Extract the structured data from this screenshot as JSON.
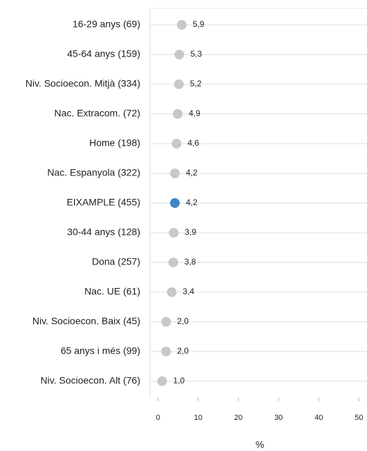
{
  "chart_data": {
    "type": "dot",
    "categories": [
      "16-29 anys (69)",
      "45-64 anys (159)",
      "Niv. Socioecon. Mitjà (334)",
      "Nac. Extracom. (72)",
      "Home (198)",
      "Nac. Espanyola (322)",
      "EIXAMPLE (455)",
      "30-44 anys (128)",
      "Dona (257)",
      "Nac. UE (61)",
      "Niv. Socioecon. Baix (45)",
      "65 anys i més (99)",
      "Niv. Socioecon. Alt (76)"
    ],
    "values": [
      5.9,
      5.3,
      5.2,
      4.9,
      4.6,
      4.2,
      4.2,
      3.9,
      3.8,
      3.4,
      2.0,
      2.0,
      1.0
    ],
    "value_labels": [
      "5,9",
      "5,3",
      "5,2",
      "4,9",
      "4,6",
      "4,2",
      "4,2",
      "3,9",
      "3,8",
      "3,4",
      "2,0",
      "2,0",
      "1,0"
    ],
    "color": "#c8c8c8",
    "colors": [
      "#c8c8c8",
      "#c8c8c8",
      "#c8c8c8",
      "#c8c8c8",
      "#c8c8c8",
      "#c8c8c8",
      "#3f86c2",
      "#c8c8c8",
      "#c8c8c8",
      "#c8c8c8",
      "#c8c8c8",
      "#c8c8c8",
      "#c8c8c8"
    ],
    "xlabel": "%",
    "xlim": [
      -2,
      52
    ],
    "xticks": [
      0,
      10,
      20,
      30,
      40,
      50
    ],
    "grid": true
  }
}
